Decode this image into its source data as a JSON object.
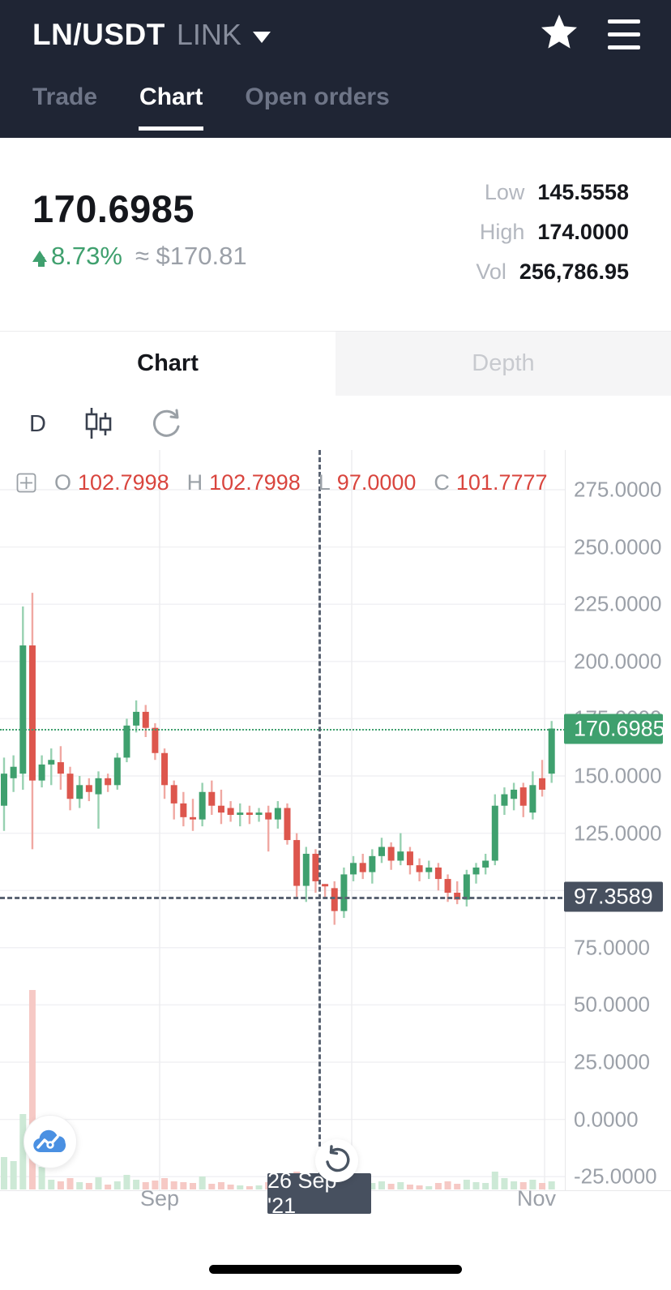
{
  "header": {
    "pair": "LN/USDT",
    "network": "LINK",
    "tabs": [
      {
        "label": "Trade",
        "active": false
      },
      {
        "label": "Chart",
        "active": true
      },
      {
        "label": "Open orders",
        "active": false
      }
    ]
  },
  "price_panel": {
    "price": "170.6985",
    "change_pct": "8.73%",
    "approx": "≈ $170.81",
    "stats": [
      {
        "label": "Low",
        "value": "145.5558"
      },
      {
        "label": "High",
        "value": "174.0000"
      },
      {
        "label": "Vol",
        "value": "256,786.95"
      }
    ]
  },
  "view_tabs": {
    "chart": "Chart",
    "depth": "Depth"
  },
  "toolbar": {
    "interval": "D"
  },
  "legend": {
    "items": [
      {
        "label": "O",
        "value": "102.7998"
      },
      {
        "label": "H",
        "value": "102.7998"
      },
      {
        "label": "L",
        "value": "97.0000"
      },
      {
        "label": "C",
        "value": "101.7777"
      }
    ]
  },
  "colors": {
    "header_bg": "#1f2534",
    "accent_green": "#3fa06e",
    "candle_green": "#3fa06e",
    "candle_red": "#dd564d",
    "wick_green": "#97d1b1",
    "wick_red": "#f0a8a2",
    "vol_green": "#cde9d6",
    "vol_red": "#f6c9c5",
    "badge_dark": "#47505f",
    "legend_value_red": "#d9453e",
    "cloud_blue": "#4a90e2"
  },
  "chart_data": {
    "type": "candlestick",
    "title": "LN/USDT daily candlestick chart",
    "current_price": 170.6985,
    "current_price_label": "170.6985",
    "crosshair": {
      "x": 393,
      "price": 97.3589,
      "price_label": "97.3589",
      "date_label": "26 Sep '21"
    },
    "y_ticks": [
      275,
      250,
      225,
      200,
      175,
      150,
      125,
      100,
      75,
      50,
      25,
      0,
      -25
    ],
    "x_ticks": [
      {
        "label": "Sep",
        "x": 197
      },
      {
        "label": "Nov",
        "x": 662
      }
    ],
    "ohlc": [
      [
        137,
        158,
        126,
        151
      ],
      [
        149,
        159,
        143,
        154
      ],
      [
        151,
        224,
        144,
        207
      ],
      [
        207,
        230,
        118,
        148
      ],
      [
        148,
        159,
        145,
        155
      ],
      [
        155,
        162,
        146,
        157
      ],
      [
        156,
        163,
        144,
        151
      ],
      [
        151,
        154,
        135,
        140
      ],
      [
        140,
        150,
        136,
        146
      ],
      [
        146,
        149,
        139,
        143
      ],
      [
        142,
        152,
        127,
        149
      ],
      [
        149,
        151,
        143,
        146
      ],
      [
        146,
        160,
        144,
        158
      ],
      [
        158,
        175,
        156,
        172
      ],
      [
        172,
        183,
        169,
        178
      ],
      [
        178,
        181,
        167,
        171
      ],
      [
        171,
        173,
        157,
        160
      ],
      [
        160,
        162,
        140,
        146
      ],
      [
        146,
        148,
        131,
        138
      ],
      [
        138,
        143,
        128,
        132
      ],
      [
        132,
        140,
        126,
        131
      ],
      [
        131,
        147,
        128,
        143
      ],
      [
        143,
        148,
        133,
        137
      ],
      [
        137,
        144,
        129,
        134
      ],
      [
        136,
        139,
        130,
        133
      ],
      [
        133,
        138,
        128,
        134
      ],
      [
        134,
        137,
        129,
        133
      ],
      [
        133,
        136,
        130,
        134
      ],
      [
        134,
        137,
        117,
        131
      ],
      [
        131,
        139,
        127,
        136
      ],
      [
        136,
        138,
        120,
        122
      ],
      [
        122,
        125,
        97,
        102
      ],
      [
        102,
        119,
        95,
        116
      ],
      [
        116,
        118,
        99,
        104
      ],
      [
        102.7998,
        102.7998,
        97.0,
        101.7777
      ],
      [
        101,
        104,
        85,
        91
      ],
      [
        91,
        110,
        88,
        107
      ],
      [
        107,
        115,
        104,
        112
      ],
      [
        112,
        116,
        105,
        108
      ],
      [
        108,
        118,
        103,
        115
      ],
      [
        115,
        123,
        112,
        119
      ],
      [
        119,
        121,
        109,
        113
      ],
      [
        113,
        125,
        111,
        117
      ],
      [
        117,
        119,
        107,
        111
      ],
      [
        111,
        114,
        104,
        108
      ],
      [
        108,
        113,
        105,
        110
      ],
      [
        110,
        112,
        100,
        105
      ],
      [
        105,
        107,
        95,
        99
      ],
      [
        99,
        104,
        94,
        96
      ],
      [
        96,
        109,
        93,
        107
      ],
      [
        107,
        112,
        103,
        110
      ],
      [
        110,
        116,
        107,
        113
      ],
      [
        113,
        142,
        111,
        137
      ],
      [
        137,
        145,
        133,
        142
      ],
      [
        140,
        147,
        135,
        144
      ],
      [
        145,
        147,
        132,
        137
      ],
      [
        134,
        152,
        131,
        146
      ],
      [
        149,
        157,
        141,
        144
      ],
      [
        151,
        174,
        147,
        170.6985
      ]
    ],
    "volume": [
      40,
      35,
      93,
      246,
      28,
      12,
      10,
      14,
      9,
      8,
      15,
      6,
      10,
      18,
      12,
      9,
      11,
      14,
      10,
      9,
      8,
      16,
      7,
      9,
      6,
      5,
      4,
      5,
      9,
      6,
      12,
      22,
      18,
      10,
      8,
      14,
      20,
      9,
      7,
      8,
      10,
      7,
      9,
      6,
      5,
      4,
      8,
      10,
      7,
      12,
      9,
      8,
      22,
      14,
      10,
      9,
      12,
      8,
      10
    ],
    "ylim": [
      -25,
      290
    ],
    "grid": true,
    "legend_position": "top-left"
  }
}
